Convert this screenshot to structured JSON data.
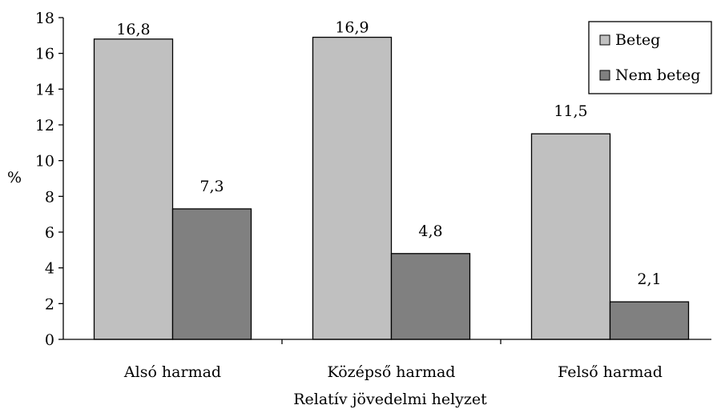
{
  "chart_data": {
    "type": "bar",
    "categories": [
      "Alsó harmad",
      "Középső harmad",
      "Felső harmad"
    ],
    "series": [
      {
        "name": "Beteg",
        "values": [
          16.8,
          16.9,
          11.5
        ],
        "labels": [
          "16,8",
          "16,9",
          "11,5"
        ],
        "color": "#c0c0c0"
      },
      {
        "name": "Nem beteg",
        "values": [
          7.3,
          4.8,
          2.1
        ],
        "labels": [
          "7,3",
          "4,8",
          "2,1"
        ],
        "color": "#808080"
      }
    ],
    "xlabel": "Relatív jövedelmi helyzet",
    "ylabel": "%",
    "ylim": [
      0,
      18
    ],
    "yticks": [
      0,
      2,
      4,
      6,
      8,
      10,
      12,
      14,
      16,
      18
    ],
    "grid": false,
    "legend": "top-right"
  }
}
